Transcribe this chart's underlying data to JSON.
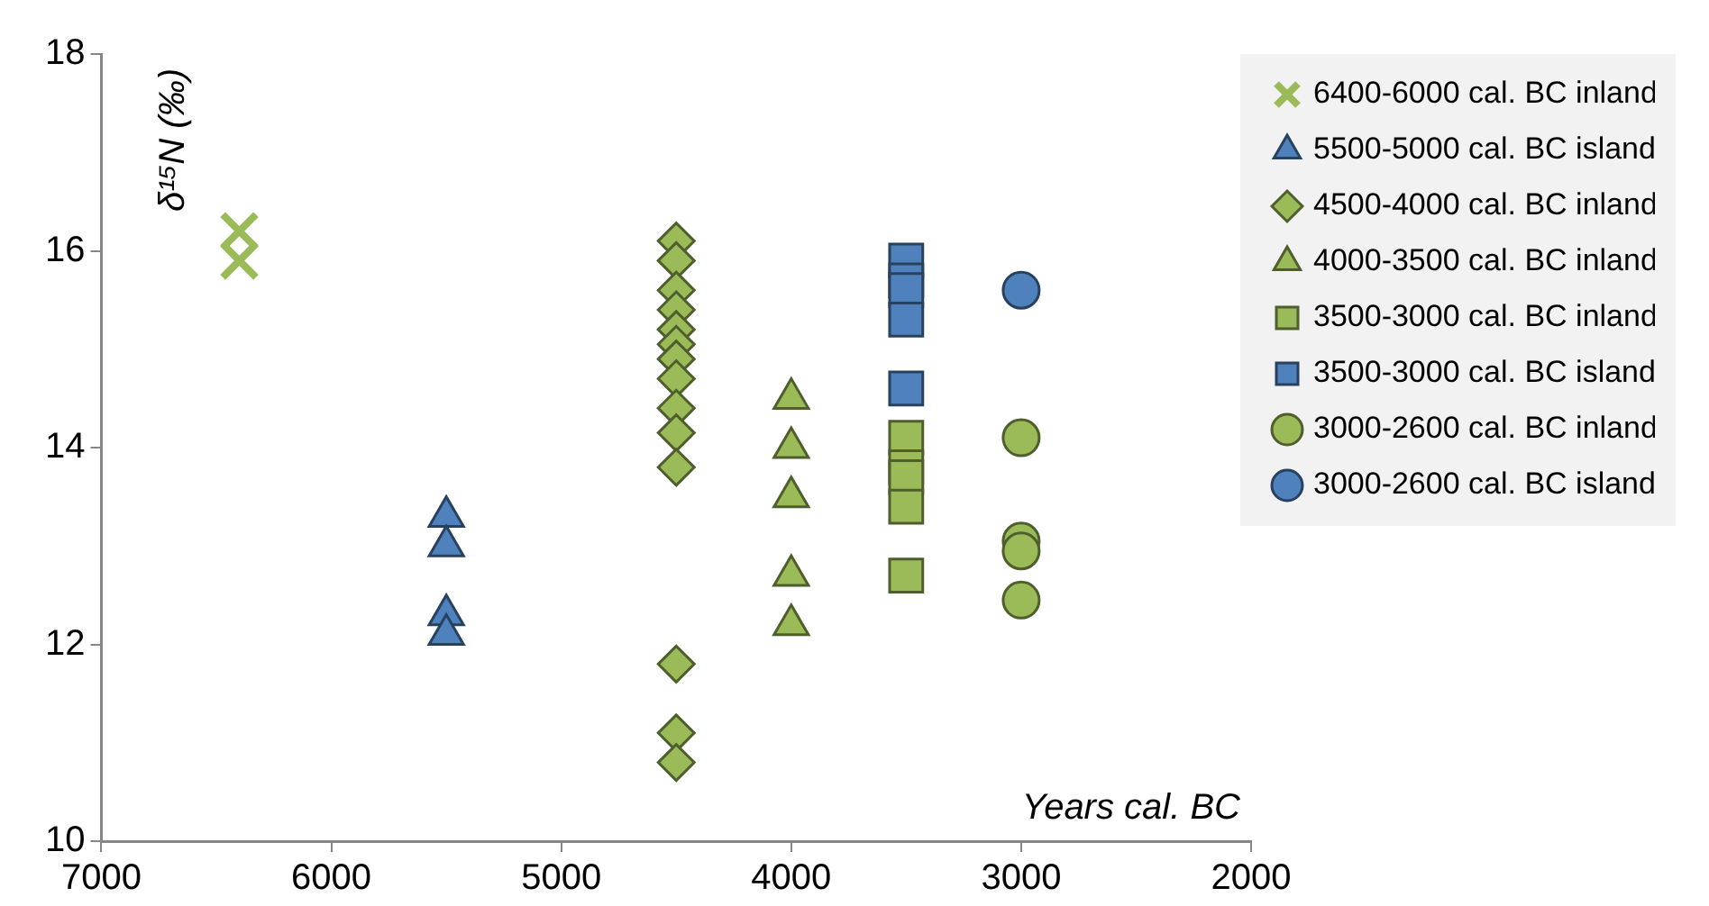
{
  "chart_data": {
    "type": "scatter",
    "xlabel": "Years cal. BC",
    "ylabel": "δ¹⁵N (‰)",
    "xlim": [
      7000,
      2000
    ],
    "xticks": [
      7000,
      6000,
      5000,
      4000,
      3000,
      2000
    ],
    "ylim": [
      10,
      18
    ],
    "yticks": [
      10,
      12,
      14,
      16,
      18
    ],
    "grid": false,
    "legend": "top right",
    "series": [
      {
        "name": "6400-6000 cal. BC inland",
        "color": "#9bbb59",
        "marker": "cross",
        "x": [
          6400,
          6400
        ],
        "values": [
          16.2,
          15.9
        ]
      },
      {
        "name": "5500-5000 cal. BC island",
        "color": "#4f81bd",
        "marker": "triangle",
        "x": [
          5500,
          5500,
          5500,
          5500
        ],
        "values": [
          13.3,
          13.0,
          12.3,
          12.1
        ]
      },
      {
        "name": "4500-4000 cal. BC inland",
        "color": "#9bbb59",
        "marker": "diamond",
        "x": [
          4500,
          4500,
          4500,
          4500,
          4500,
          4500,
          4500,
          4500,
          4500,
          4500,
          4500,
          4500,
          4500,
          4500
        ],
        "values": [
          16.1,
          15.9,
          15.6,
          15.4,
          15.2,
          15.05,
          14.9,
          14.7,
          14.4,
          14.15,
          13.8,
          11.8,
          11.1,
          10.8
        ]
      },
      {
        "name": "4000-3500 cal. BC inland",
        "color": "#9bbb59",
        "marker": "triangle",
        "x": [
          4000,
          4000,
          4000,
          4000,
          4000
        ],
        "values": [
          14.5,
          14.0,
          13.5,
          12.7,
          12.2
        ]
      },
      {
        "name": "3500-3000 cal. BC inland",
        "color": "#9bbb59",
        "marker": "square",
        "x": [
          3500,
          3500,
          3500,
          3500,
          3500
        ],
        "values": [
          14.1,
          13.8,
          13.7,
          13.4,
          12.7
        ]
      },
      {
        "name": "3500-3000 cal. BC island",
        "color": "#4f81bd",
        "marker": "square",
        "x": [
          3500,
          3500,
          3500,
          3500,
          3500
        ],
        "values": [
          15.9,
          15.7,
          15.6,
          15.3,
          14.6
        ]
      },
      {
        "name": "3000-2600 cal. BC inland",
        "color": "#9bbb59",
        "marker": "circle",
        "x": [
          3000,
          3000,
          3000,
          3000
        ],
        "values": [
          14.1,
          13.05,
          12.95,
          12.45
        ]
      },
      {
        "name": "3000-2600 cal. BC island",
        "color": "#4f81bd",
        "marker": "circle",
        "x": [
          3000
        ],
        "values": [
          15.6
        ]
      }
    ]
  }
}
